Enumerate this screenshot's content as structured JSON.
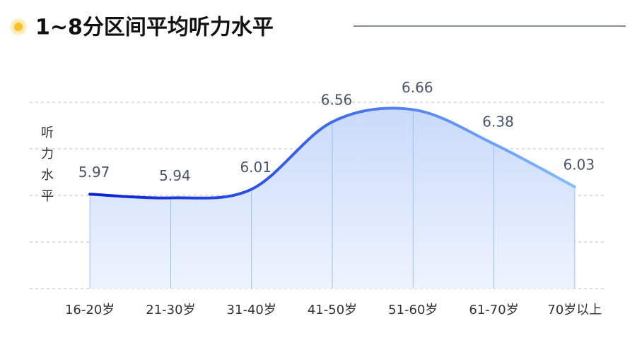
{
  "chart_data": {
    "type": "line",
    "title": "1~8分区间平均听力水平",
    "y_label": "听力水平",
    "categories": [
      "16-20岁",
      "21-30岁",
      "31-40岁",
      "41-50岁",
      "51-60岁",
      "61-70岁",
      "70岁以上"
    ],
    "values": [
      5.97,
      5.94,
      6.01,
      6.56,
      6.66,
      6.38,
      6.03
    ],
    "ylim": [
      5.2,
      6.72
    ],
    "yticks": [
      5.2,
      5.58,
      5.96,
      6.34,
      6.72
    ],
    "grid": true,
    "color": "#2a4be0"
  }
}
